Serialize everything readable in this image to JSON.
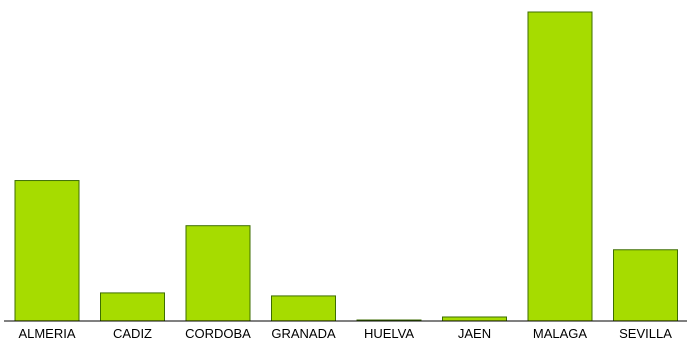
{
  "chart_data": {
    "type": "bar",
    "categories": [
      "ALMERIA",
      "CADIZ",
      "CORDOBA",
      "GRANADA",
      "HUELVA",
      "JAEN",
      "MALAGA",
      "SEVILLA"
    ],
    "values": [
      140,
      28,
      95,
      25,
      0.5,
      4,
      308,
      71
    ],
    "title": "",
    "xlabel": "",
    "ylabel": "",
    "ylim": [
      0,
      308
    ],
    "grid": false,
    "legend": "none",
    "bar_color": "#a6dc00",
    "bar_edge_color": "#3d6e00",
    "axis_color": "#000000"
  }
}
